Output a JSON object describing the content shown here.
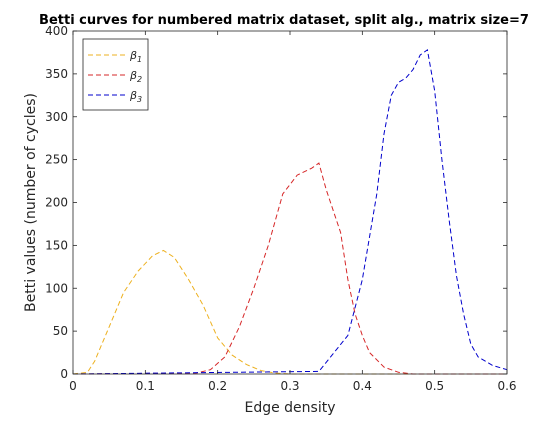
{
  "chart_data": {
    "type": "line",
    "title": "Betti curves for numbered matrix dataset, split alg., matrix size=7",
    "xlabel": "Edge density",
    "ylabel": "Betti values (number of cycles)",
    "xlim": [
      0,
      0.6
    ],
    "ylim": [
      0,
      400
    ],
    "xticks": [
      0,
      0.1,
      0.2,
      0.3,
      0.4,
      0.5,
      0.6
    ],
    "xtick_labels": [
      "0",
      "0.1",
      "0.2",
      "0.3",
      "0.4",
      "0.5",
      "0.6"
    ],
    "yticks": [
      0,
      50,
      100,
      150,
      200,
      250,
      300,
      350,
      400
    ],
    "ytick_labels": [
      "0",
      "50",
      "100",
      "150",
      "200",
      "250",
      "300",
      "350",
      "400"
    ],
    "grid": false,
    "legend_position": "top-left",
    "series": [
      {
        "name": "β1",
        "legend_base": "β",
        "legend_sub": "1",
        "color": "#EDB120",
        "line_style": "dashed",
        "x": [
          0,
          0.02,
          0.03,
          0.05,
          0.07,
          0.09,
          0.11,
          0.125,
          0.14,
          0.16,
          0.18,
          0.2,
          0.22,
          0.24,
          0.26,
          0.28,
          0.3,
          0.6
        ],
        "y": [
          0,
          2,
          15,
          55,
          95,
          120,
          138,
          144,
          136,
          110,
          80,
          42,
          22,
          11,
          4,
          1,
          0,
          0
        ]
      },
      {
        "name": "β2",
        "legend_base": "β",
        "legend_sub": "2",
        "color": "#D62728",
        "line_style": "dashed",
        "x": [
          0,
          0.17,
          0.19,
          0.21,
          0.23,
          0.25,
          0.27,
          0.29,
          0.31,
          0.33,
          0.34,
          0.35,
          0.37,
          0.38,
          0.39,
          0.4,
          0.41,
          0.43,
          0.45,
          0.47,
          0.5,
          0.6
        ],
        "y": [
          0,
          1,
          5,
          20,
          55,
          100,
          150,
          210,
          232,
          240,
          246,
          215,
          165,
          110,
          70,
          45,
          25,
          8,
          2,
          0,
          0,
          0
        ]
      },
      {
        "name": "β3",
        "legend_base": "β",
        "legend_sub": "3",
        "color": "#0000CC",
        "line_style": "dashed",
        "x": [
          0,
          0.34,
          0.38,
          0.4,
          0.42,
          0.43,
          0.44,
          0.45,
          0.46,
          0.47,
          0.48,
          0.49,
          0.5,
          0.51,
          0.52,
          0.53,
          0.54,
          0.55,
          0.56,
          0.58,
          0.6
        ],
        "y": [
          0,
          3,
          45,
          110,
          210,
          280,
          325,
          340,
          345,
          355,
          372,
          378,
          330,
          250,
          180,
          115,
          70,
          35,
          20,
          10,
          5
        ]
      }
    ]
  }
}
